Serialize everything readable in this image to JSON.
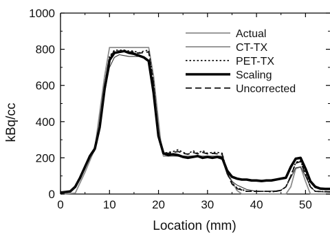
{
  "chart_data": {
    "type": "line",
    "title": "",
    "xlabel": "Location (mm)",
    "ylabel": "kBq/cc",
    "xlim": [
      0,
      55
    ],
    "ylim": [
      0,
      1000
    ],
    "x_ticks": [
      0,
      10,
      20,
      30,
      40,
      50
    ],
    "y_ticks": [
      0,
      200,
      400,
      600,
      800,
      1000
    ],
    "grid": false,
    "legend_position": "top-right",
    "series": [
      {
        "name": "Actual",
        "color": "#8c8c8c",
        "dash": "solid",
        "weight": "medium",
        "points": [
          [
            0,
            0
          ],
          [
            3,
            5
          ],
          [
            5,
            120
          ],
          [
            7,
            250
          ],
          [
            9,
            650
          ],
          [
            10,
            810
          ],
          [
            18,
            810
          ],
          [
            19,
            650
          ],
          [
            20.5,
            280
          ],
          [
            21,
            210
          ],
          [
            33,
            210
          ],
          [
            34,
            120
          ],
          [
            36,
            20
          ],
          [
            37,
            0
          ],
          [
            46,
            0
          ],
          [
            47,
            40
          ],
          [
            48,
            140
          ],
          [
            49,
            150
          ],
          [
            50,
            70
          ],
          [
            51,
            0
          ],
          [
            55,
            0
          ]
        ]
      },
      {
        "name": "CT-TX",
        "color": "#333333",
        "dash": "solid",
        "weight": "thin",
        "points": [
          [
            0,
            5
          ],
          [
            2,
            12
          ],
          [
            3,
            40
          ],
          [
            4,
            80
          ],
          [
            5,
            140
          ],
          [
            6,
            200
          ],
          [
            7,
            240
          ],
          [
            8,
            360
          ],
          [
            9,
            560
          ],
          [
            10,
            700
          ],
          [
            11,
            755
          ],
          [
            12,
            770
          ],
          [
            13,
            765
          ],
          [
            14,
            760
          ],
          [
            15,
            760
          ],
          [
            16,
            760
          ],
          [
            17,
            755
          ],
          [
            18,
            740
          ],
          [
            19,
            560
          ],
          [
            20,
            320
          ],
          [
            21,
            230
          ],
          [
            22,
            215
          ],
          [
            24,
            210
          ],
          [
            26,
            205
          ],
          [
            28,
            205
          ],
          [
            30,
            205
          ],
          [
            32,
            200
          ],
          [
            33,
            190
          ],
          [
            34,
            110
          ],
          [
            35,
            70
          ],
          [
            36,
            50
          ],
          [
            38,
            25
          ],
          [
            40,
            15
          ],
          [
            42,
            15
          ],
          [
            44,
            18
          ],
          [
            45,
            22
          ],
          [
            46,
            40
          ],
          [
            47,
            90
          ],
          [
            48,
            145
          ],
          [
            49,
            150
          ],
          [
            50,
            100
          ],
          [
            51,
            40
          ],
          [
            52,
            15
          ],
          [
            55,
            10
          ]
        ]
      },
      {
        "name": "PET-TX",
        "color": "#111111",
        "dash": "dotted",
        "weight": "medium",
        "points": [
          [
            0,
            8
          ],
          [
            2,
            15
          ],
          [
            3,
            40
          ],
          [
            4,
            90
          ],
          [
            5,
            150
          ],
          [
            6,
            210
          ],
          [
            7,
            250
          ],
          [
            8,
            380
          ],
          [
            9,
            600
          ],
          [
            10,
            760
          ],
          [
            11,
            795
          ],
          [
            12,
            795
          ],
          [
            13,
            795
          ],
          [
            14,
            790
          ],
          [
            15,
            790
          ],
          [
            16,
            780
          ],
          [
            17,
            790
          ],
          [
            18,
            795
          ],
          [
            19,
            620
          ],
          [
            20,
            320
          ],
          [
            21,
            225
          ],
          [
            22,
            230
          ],
          [
            23,
            235
          ],
          [
            24,
            245
          ],
          [
            25,
            230
          ],
          [
            26,
            220
          ],
          [
            27,
            240
          ],
          [
            28,
            225
          ],
          [
            29,
            240
          ],
          [
            30,
            225
          ],
          [
            31,
            230
          ],
          [
            32,
            230
          ],
          [
            33,
            225
          ],
          [
            34,
            120
          ],
          [
            35,
            60
          ],
          [
            36,
            35
          ],
          [
            38,
            15
          ],
          [
            40,
            15
          ],
          [
            42,
            15
          ],
          [
            43,
            12
          ],
          [
            44,
            15
          ],
          [
            45,
            20
          ],
          [
            46,
            40
          ],
          [
            47,
            100
          ],
          [
            48,
            175
          ],
          [
            49,
            185
          ],
          [
            50,
            110
          ],
          [
            51,
            40
          ],
          [
            52,
            15
          ],
          [
            55,
            12
          ]
        ]
      },
      {
        "name": "Scaling",
        "color": "#000000",
        "dash": "solid",
        "weight": "thick",
        "points": [
          [
            0,
            8
          ],
          [
            2,
            15
          ],
          [
            3,
            40
          ],
          [
            4,
            90
          ],
          [
            5,
            150
          ],
          [
            6,
            210
          ],
          [
            7,
            250
          ],
          [
            8,
            370
          ],
          [
            9,
            580
          ],
          [
            10,
            740
          ],
          [
            11,
            780
          ],
          [
            12,
            785
          ],
          [
            13,
            790
          ],
          [
            14,
            780
          ],
          [
            15,
            775
          ],
          [
            16,
            765
          ],
          [
            17,
            755
          ],
          [
            18,
            735
          ],
          [
            19,
            560
          ],
          [
            20,
            320
          ],
          [
            21,
            225
          ],
          [
            22,
            215
          ],
          [
            23,
            220
          ],
          [
            24,
            215
          ],
          [
            25,
            205
          ],
          [
            26,
            200
          ],
          [
            27,
            205
          ],
          [
            28,
            210
          ],
          [
            29,
            200
          ],
          [
            30,
            205
          ],
          [
            31,
            200
          ],
          [
            32,
            205
          ],
          [
            33,
            200
          ],
          [
            34,
            130
          ],
          [
            35,
            95
          ],
          [
            36,
            85
          ],
          [
            37,
            80
          ],
          [
            38,
            80
          ],
          [
            39,
            75
          ],
          [
            40,
            75
          ],
          [
            41,
            72
          ],
          [
            42,
            75
          ],
          [
            43,
            75
          ],
          [
            44,
            80
          ],
          [
            45,
            85
          ],
          [
            46,
            90
          ],
          [
            47,
            150
          ],
          [
            48,
            195
          ],
          [
            49,
            200
          ],
          [
            50,
            140
          ],
          [
            51,
            70
          ],
          [
            52,
            40
          ],
          [
            53,
            30
          ],
          [
            54,
            28
          ],
          [
            55,
            28
          ]
        ]
      },
      {
        "name": "Uncorrected",
        "color": "#111111",
        "dash": "dashed",
        "weight": "medium",
        "points": [
          [
            0,
            8
          ],
          [
            2,
            15
          ],
          [
            3,
            40
          ],
          [
            4,
            85
          ],
          [
            5,
            145
          ],
          [
            6,
            205
          ],
          [
            7,
            245
          ],
          [
            8,
            375
          ],
          [
            9,
            595
          ],
          [
            10,
            755
          ],
          [
            11,
            790
          ],
          [
            12,
            790
          ],
          [
            13,
            792
          ],
          [
            14,
            785
          ],
          [
            15,
            785
          ],
          [
            16,
            778
          ],
          [
            17,
            782
          ],
          [
            18,
            785
          ],
          [
            19,
            610
          ],
          [
            20,
            325
          ],
          [
            21,
            228
          ],
          [
            22,
            225
          ],
          [
            23,
            230
          ],
          [
            24,
            235
          ],
          [
            25,
            225
          ],
          [
            26,
            220
          ],
          [
            27,
            230
          ],
          [
            28,
            222
          ],
          [
            29,
            230
          ],
          [
            30,
            222
          ],
          [
            31,
            225
          ],
          [
            32,
            222
          ],
          [
            33,
            220
          ],
          [
            34,
            115
          ],
          [
            35,
            55
          ],
          [
            36,
            30
          ],
          [
            38,
            15
          ],
          [
            40,
            15
          ],
          [
            42,
            15
          ],
          [
            44,
            15
          ],
          [
            45,
            20
          ],
          [
            46,
            40
          ],
          [
            47,
            100
          ],
          [
            48,
            170
          ],
          [
            49,
            180
          ],
          [
            50,
            105
          ],
          [
            51,
            40
          ],
          [
            52,
            15
          ],
          [
            55,
            12
          ]
        ]
      }
    ]
  }
}
